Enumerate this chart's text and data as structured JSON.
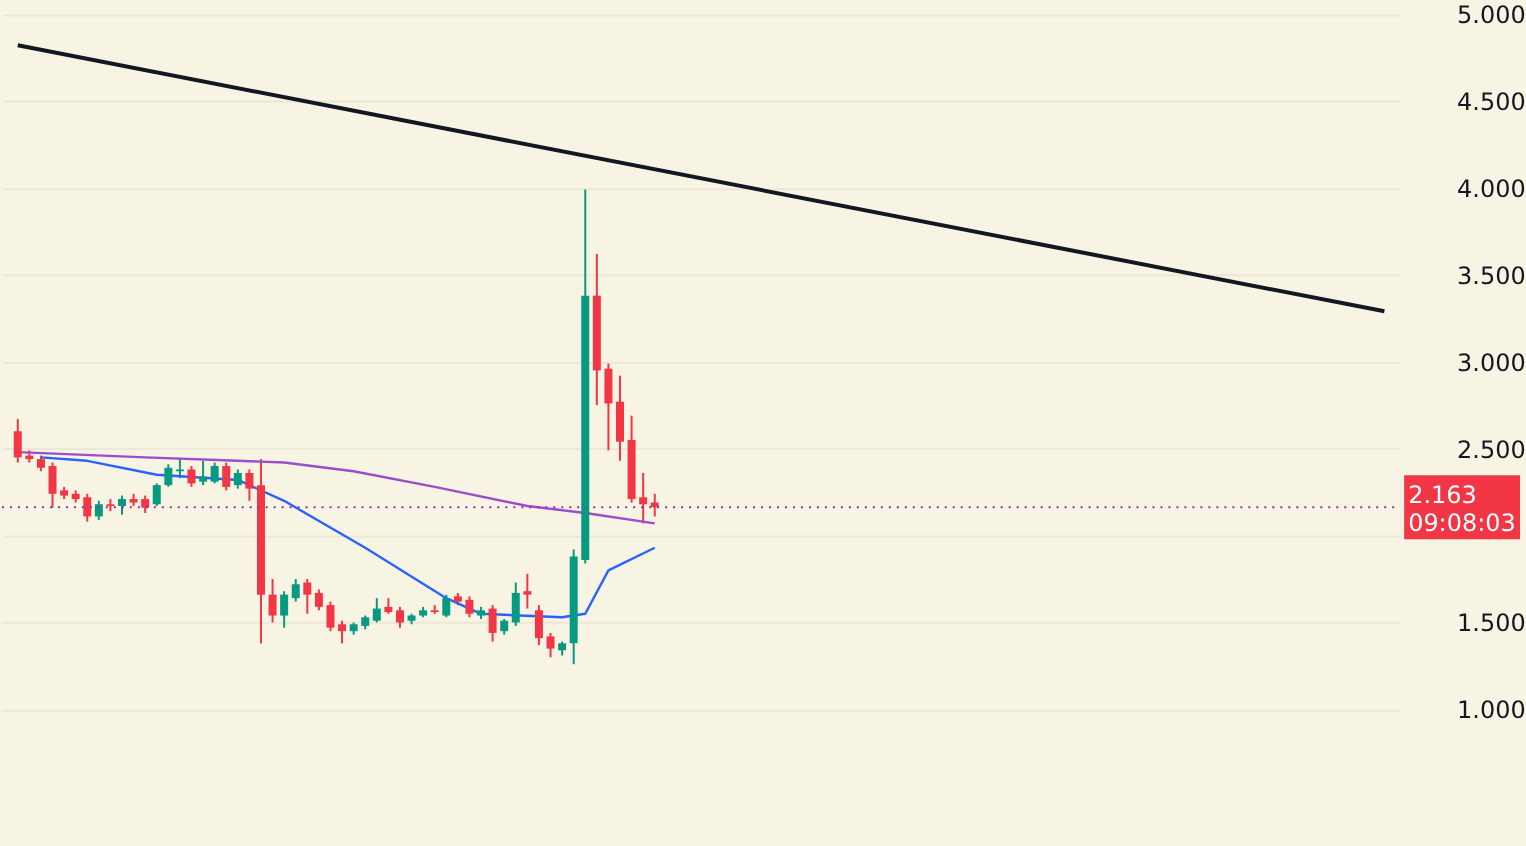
{
  "chart_data": {
    "type": "candlestick",
    "categories": [
      null,
      null,
      null,
      null,
      null,
      null,
      null,
      null,
      null,
      null,
      null,
      null,
      null,
      null,
      null,
      null,
      null,
      null,
      null,
      null,
      null,
      null,
      null,
      null,
      null,
      null,
      null,
      null,
      null,
      null,
      null,
      null,
      null,
      null,
      null,
      null,
      null,
      null,
      null,
      null,
      null,
      null,
      null,
      null,
      null,
      null,
      null,
      null,
      null,
      null,
      null,
      null,
      null,
      null,
      null,
      null,
      null,
      null,
      null,
      null,
      null,
      null,
      null,
      null,
      null,
      null,
      null,
      null,
      null,
      null,
      null,
      null,
      null,
      null,
      null,
      null,
      null,
      null,
      null,
      null,
      null,
      null,
      null,
      null,
      null,
      null,
      null,
      null,
      null,
      null,
      null,
      null,
      null,
      null,
      null,
      null,
      null,
      null,
      null,
      null,
      null,
      null,
      null,
      null,
      null,
      null,
      null,
      null,
      null,
      null,
      null,
      null,
      null,
      null,
      null,
      null,
      null,
      null,
      null
    ],
    "ohlc": [
      [
        2.6,
        2.67,
        2.42,
        2.45
      ],
      [
        2.46,
        2.49,
        2.42,
        2.44
      ],
      [
        2.44,
        2.46,
        2.37,
        2.39
      ],
      [
        2.4,
        2.42,
        2.16,
        2.24
      ],
      [
        2.26,
        2.28,
        2.21,
        2.23
      ],
      [
        2.24,
        2.26,
        2.19,
        2.21
      ],
      [
        2.22,
        2.24,
        2.08,
        2.11
      ],
      [
        2.11,
        2.2,
        2.09,
        2.18
      ],
      [
        2.18,
        2.21,
        2.14,
        2.17
      ],
      [
        2.17,
        2.23,
        2.12,
        2.21
      ],
      [
        2.21,
        2.24,
        2.17,
        2.19
      ],
      [
        2.21,
        2.23,
        2.13,
        2.16
      ],
      [
        2.18,
        2.3,
        2.17,
        2.29
      ],
      [
        2.29,
        2.41,
        2.28,
        2.39
      ],
      [
        2.37,
        2.44,
        2.33,
        2.38
      ],
      [
        2.38,
        2.4,
        2.28,
        2.3
      ],
      [
        2.31,
        2.43,
        2.29,
        2.34
      ],
      [
        2.31,
        2.42,
        2.3,
        2.4
      ],
      [
        2.4,
        2.42,
        2.26,
        2.28
      ],
      [
        2.29,
        2.38,
        2.27,
        2.36
      ],
      [
        2.36,
        2.38,
        2.2,
        2.27
      ],
      [
        2.29,
        2.44,
        1.38,
        1.66
      ],
      [
        1.66,
        1.75,
        1.5,
        1.54
      ],
      [
        1.54,
        1.68,
        1.47,
        1.66
      ],
      [
        1.64,
        1.75,
        1.62,
        1.72
      ],
      [
        1.73,
        1.75,
        1.55,
        1.66
      ],
      [
        1.67,
        1.69,
        1.57,
        1.59
      ],
      [
        1.6,
        1.62,
        1.45,
        1.47
      ],
      [
        1.49,
        1.51,
        1.38,
        1.45
      ],
      [
        1.45,
        1.5,
        1.43,
        1.49
      ],
      [
        1.48,
        1.54,
        1.46,
        1.53
      ],
      [
        1.51,
        1.64,
        1.5,
        1.58
      ],
      [
        1.59,
        1.64,
        1.55,
        1.56
      ],
      [
        1.57,
        1.59,
        1.47,
        1.5
      ],
      [
        1.51,
        1.55,
        1.49,
        1.54
      ],
      [
        1.54,
        1.59,
        1.53,
        1.57
      ],
      [
        1.57,
        1.6,
        1.55,
        1.56
      ],
      [
        1.54,
        1.66,
        1.53,
        1.64
      ],
      [
        1.65,
        1.67,
        1.6,
        1.62
      ],
      [
        1.63,
        1.65,
        1.53,
        1.55
      ],
      [
        1.54,
        1.59,
        1.52,
        1.57
      ],
      [
        1.58,
        1.6,
        1.39,
        1.44
      ],
      [
        1.45,
        1.52,
        1.43,
        1.51
      ],
      [
        1.5,
        1.73,
        1.48,
        1.67
      ],
      [
        1.68,
        1.78,
        1.58,
        1.66
      ],
      [
        1.57,
        1.6,
        1.37,
        1.41
      ],
      [
        1.42,
        1.44,
        1.3,
        1.35
      ],
      [
        1.34,
        1.39,
        1.31,
        1.38
      ],
      [
        1.38,
        1.92,
        1.26,
        1.88
      ],
      [
        1.86,
        3.99,
        1.84,
        3.38
      ],
      [
        3.38,
        3.62,
        2.75,
        2.95
      ],
      [
        2.96,
        2.99,
        2.49,
        2.76
      ],
      [
        2.77,
        2.92,
        2.43,
        2.54
      ],
      [
        2.55,
        2.69,
        2.19,
        2.21
      ],
      [
        2.22,
        2.36,
        2.07,
        2.18
      ],
      [
        2.19,
        2.24,
        2.11,
        2.163
      ],
      null,
      null,
      null,
      null,
      null,
      null,
      null,
      null,
      null,
      null,
      null,
      null,
      null,
      null,
      null,
      null,
      null,
      null,
      null,
      null,
      null,
      null,
      null,
      null,
      null,
      null,
      null,
      null,
      null,
      null,
      null,
      null,
      null,
      null,
      null,
      null,
      null,
      null,
      null,
      null,
      null,
      null,
      null,
      null,
      null,
      null,
      null,
      null,
      null,
      null,
      null,
      null,
      null,
      null,
      null,
      null,
      null,
      null,
      null,
      null,
      null,
      null,
      null
    ],
    "colors": [
      "#f23645",
      "#f23645",
      "#f23645",
      "#f23645",
      "#f23645",
      "#f23645",
      "#f23645",
      "#089981",
      "#f23645",
      "#089981",
      "#f23645",
      "#f23645",
      "#089981",
      "#089981",
      "#089981",
      "#f23645",
      "#089981",
      "#089981",
      "#f23645",
      "#089981",
      "#f23645",
      "#f23645",
      "#f23645",
      "#089981",
      "#089981",
      "#f23645",
      "#f23645",
      "#f23645",
      "#f23645",
      "#089981",
      "#089981",
      "#089981",
      "#f23645",
      "#f23645",
      "#089981",
      "#089981",
      "#f23645",
      "#089981",
      "#f23645",
      "#f23645",
      "#089981",
      "#f23645",
      "#089981",
      "#089981",
      "#f23645",
      "#f23645",
      "#f23645",
      "#089981",
      "#089981",
      "#089981",
      "#f23645",
      "#f23645",
      "#f23645",
      "#f23645",
      "#f23645",
      "#f23645",
      null,
      null,
      null,
      null,
      null,
      null,
      null,
      null,
      null,
      null,
      null,
      null,
      null,
      null,
      null,
      null,
      null,
      null,
      null,
      null,
      null,
      null,
      null,
      null,
      null,
      null,
      null,
      null,
      null,
      null,
      null,
      null,
      null,
      null,
      null,
      null,
      null,
      null,
      null,
      null,
      null,
      null,
      null,
      null,
      null,
      null,
      null,
      null,
      null,
      null,
      null,
      null,
      null,
      null,
      null,
      null,
      null,
      null,
      null,
      null,
      null,
      null,
      null
    ],
    "series": [
      {
        "type": "line",
        "color": "#131722",
        "values": [
          4.82,
          null,
          null,
          null,
          null,
          null,
          null,
          null,
          null,
          null,
          null,
          null,
          null,
          null,
          null,
          null,
          null,
          null,
          null,
          null,
          null,
          null,
          null,
          null,
          null,
          null,
          null,
          null,
          null,
          null,
          null,
          null,
          null,
          null,
          null,
          null,
          null,
          null,
          null,
          null,
          null,
          null,
          null,
          null,
          null,
          null,
          null,
          null,
          null,
          null,
          null,
          null,
          null,
          null,
          null,
          null,
          null,
          null,
          null,
          null,
          null,
          null,
          null,
          null,
          null,
          null,
          null,
          null,
          null,
          null,
          null,
          null,
          null,
          null,
          null,
          null,
          null,
          null,
          null,
          null,
          null,
          null,
          null,
          null,
          null,
          null,
          null,
          null,
          null,
          null,
          null,
          null,
          null,
          null,
          null,
          null,
          null,
          null,
          null,
          null,
          null,
          null,
          null,
          null,
          null,
          null,
          null,
          null,
          null,
          null,
          null,
          null,
          null,
          null,
          null,
          null,
          null,
          null,
          3.29
        ]
      },
      {
        "type": "line",
        "color": "#9c4dcc",
        "values": [
          2.48,
          null,
          null,
          null,
          null,
          null,
          null,
          null,
          null,
          null,
          null,
          2.45,
          null,
          null,
          null,
          null,
          null,
          null,
          null,
          2.43,
          null,
          null,
          null,
          2.42,
          null,
          null,
          null,
          null,
          null,
          2.37,
          null,
          null,
          null,
          null,
          null,
          null,
          2.28,
          null,
          null,
          null,
          null,
          null,
          null,
          null,
          2.17,
          null,
          null,
          null,
          null,
          2.13,
          null,
          null,
          null,
          null,
          null,
          2.07,
          null,
          null,
          null,
          null,
          null,
          null,
          null,
          null,
          null,
          null,
          null,
          null,
          null,
          null,
          null,
          null,
          null,
          null,
          null,
          null,
          null,
          null,
          null,
          null,
          null,
          null,
          null,
          null,
          null,
          null,
          null,
          null,
          null,
          null,
          null,
          null,
          null,
          null,
          null,
          null,
          null,
          null,
          null,
          null,
          null,
          null,
          null,
          null,
          null,
          null,
          null,
          null,
          null,
          null,
          null,
          null,
          null,
          null,
          null,
          null,
          null,
          null,
          null
        ]
      },
      {
        "type": "line",
        "color": "#2962ff",
        "values": [
          null,
          null,
          2.45,
          null,
          null,
          null,
          2.43,
          null,
          null,
          null,
          null,
          null,
          2.35,
          null,
          null,
          null,
          null,
          null,
          null,
          2.32,
          null,
          null,
          null,
          2.2,
          null,
          null,
          null,
          null,
          null,
          null,
          1.93,
          null,
          null,
          null,
          null,
          null,
          null,
          1.64,
          null,
          null,
          1.55,
          null,
          null,
          null,
          null,
          null,
          null,
          1.53,
          null,
          1.55,
          null,
          1.8,
          null,
          null,
          null,
          1.93,
          null,
          null,
          null,
          null,
          null,
          null,
          null,
          null,
          null,
          null,
          null,
          null,
          null,
          null,
          null,
          null,
          null,
          null,
          null,
          null,
          null,
          null,
          null,
          null,
          null,
          null,
          null,
          null,
          null,
          null,
          null,
          null,
          null,
          null,
          null,
          null,
          null,
          null,
          null,
          null,
          null,
          null,
          null,
          null,
          null,
          null,
          null,
          null,
          null,
          null,
          null,
          null,
          null,
          null,
          null,
          null,
          null,
          null,
          null,
          null,
          null,
          null,
          null
        ]
      }
    ],
    "ylim": [
      0.16,
      5.02
    ],
    "yticks": [
      {
        "value": 1,
        "label": "1.000"
      },
      {
        "value": 1.5,
        "label": "1.500"
      },
      {
        "value": 2,
        "label": null
      },
      {
        "value": 2.5,
        "label": "2.500"
      },
      {
        "value": 3,
        "label": "3.000"
      },
      {
        "value": 3.5,
        "label": "3.500"
      },
      {
        "value": 4,
        "label": "4.000"
      },
      {
        "value": 4.5,
        "label": "4.500"
      },
      {
        "value": 5,
        "label": "5.000"
      }
    ],
    "tick_labels": "y",
    "grid": "y",
    "ref_lines": [
      {
        "axis": "y",
        "value": 2.163,
        "label": "2.163 09:08:03",
        "color": "#9c27b0",
        "line_style": "dotted"
      }
    ]
  }
}
